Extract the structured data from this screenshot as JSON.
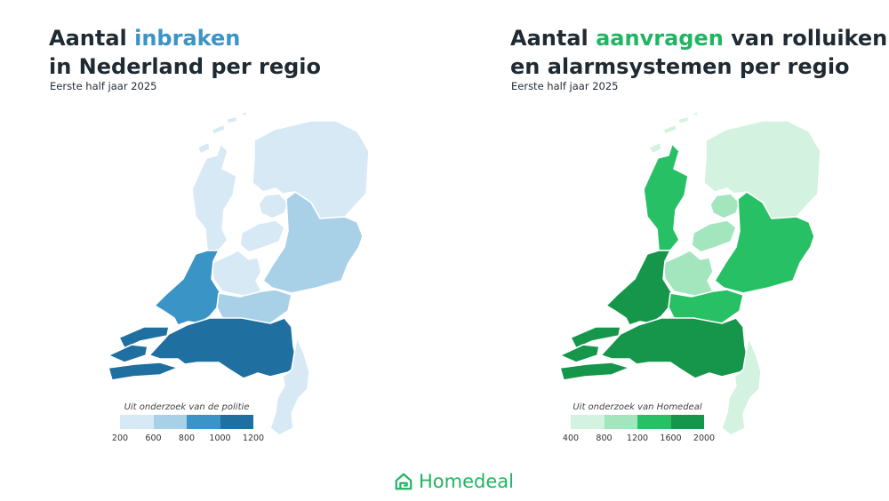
{
  "left_panel": {
    "title_part1": "Aantal ",
    "title_highlight": "inbraken",
    "title_line2": "in Nederland per regio",
    "subtitle": "Eerste half jaar 2025",
    "legend_caption": "Uit onderzoek van de politie",
    "legend_ticks": [
      "200",
      "600",
      "800",
      "1000",
      "1200"
    ],
    "legend_colors": [
      "#d6e9f5",
      "#a8d1e8",
      "#3a94c6",
      "#1f6fa1"
    ],
    "highlight_color": "#3a94c6"
  },
  "right_panel": {
    "title_part1": "Aantal ",
    "title_highlight": "aanvragen",
    "title_part2": " van rolluiken",
    "title_line2": "en alarmsystemen per regio",
    "subtitle": "Eerste half jaar 2025",
    "legend_caption": "Uit onderzoek van Homedeal",
    "legend_ticks": [
      "400",
      "800",
      "1200",
      "1600",
      "2000"
    ],
    "legend_colors": [
      "#d3f2df",
      "#a3e6be",
      "#27c065",
      "#15964a"
    ],
    "highlight_color": "#20b562"
  },
  "brand": {
    "name": "Homedeal",
    "icon": "house-icon",
    "color": "#20b562"
  },
  "map_data": {
    "inbraken": {
      "Noord": 1,
      "Noord-Holland": 1,
      "Flevoland": 1,
      "Utrecht": 1,
      "Oost": 2,
      "Zuid-Holland": 3,
      "Midden-Nederland": 2,
      "Zeeland": 4,
      "Brabant": 4,
      "Limburg": 1
    },
    "aanvragen": {
      "Noord": 1,
      "Noord-Holland": 3,
      "Flevoland": 2,
      "Utrecht": 2,
      "Oost": 3,
      "Zuid-Holland": 4,
      "Midden-Nederland": 3,
      "Zeeland": 4,
      "Brabant": 4,
      "Limburg": 1
    }
  }
}
